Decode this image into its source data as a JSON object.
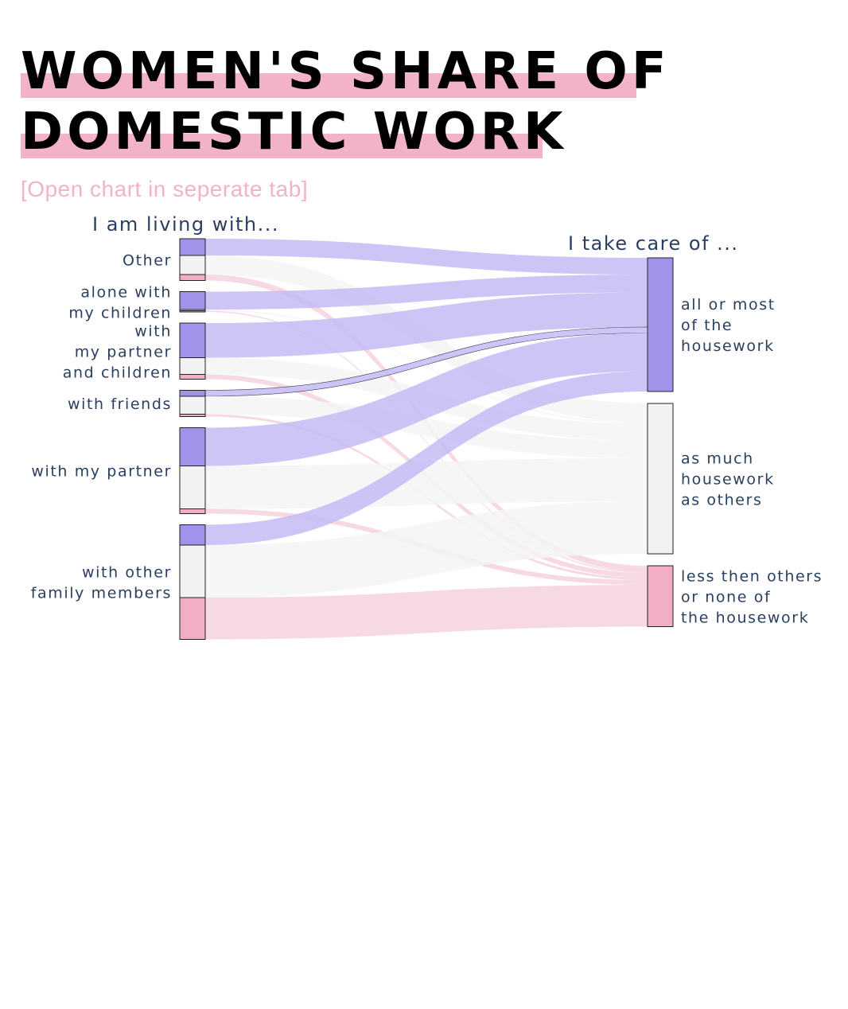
{
  "title": {
    "line1": " WOMEN'S SHARE OF",
    "line2": "DOMESTIC WORK",
    "highlight_color": "#f2b3c9"
  },
  "link": {
    "label": "[Open chart in seperate tab]"
  },
  "chart_data": {
    "type": "sankey",
    "source_heading": "I am living with...",
    "target_heading": "I take care of ...",
    "colors": {
      "all_or_most": "#9f94ea",
      "as_much": "#f2f2f2",
      "less_or_none": "#f2aec4",
      "link_all_or_most": "#c3bbf3",
      "link_as_much": "#f4f4f4",
      "link_less_or_none": "#f5d2de"
    },
    "sources": [
      {
        "id": "other",
        "label": [
          "Other"
        ]
      },
      {
        "id": "alone_children",
        "label": [
          "alone with",
          "my children"
        ]
      },
      {
        "id": "partner_children",
        "label": [
          "with",
          "my partner",
          "and children"
        ]
      },
      {
        "id": "friends",
        "label": [
          "with friends"
        ]
      },
      {
        "id": "partner",
        "label": [
          "with my partner"
        ]
      },
      {
        "id": "family",
        "label": [
          "with other",
          "family members"
        ]
      }
    ],
    "targets": [
      {
        "id": "all_or_most",
        "label": [
          "all or most",
          "of the",
          "housework"
        ]
      },
      {
        "id": "as_much",
        "label": [
          "as much",
          "housework",
          "as others"
        ]
      },
      {
        "id": "less_or_none",
        "label": [
          "less then others",
          "or none of",
          "the housework"
        ]
      }
    ],
    "flows": [
      {
        "source": "other",
        "all_or_most": 14,
        "as_much": 16,
        "less_or_none": 5
      },
      {
        "source": "alone_children",
        "all_or_most": 15,
        "as_much": 1,
        "less_or_none": 1
      },
      {
        "source": "partner_children",
        "all_or_most": 29,
        "as_much": 14,
        "less_or_none": 4
      },
      {
        "source": "friends",
        "all_or_most": 5,
        "as_much": 15,
        "less_or_none": 2
      },
      {
        "source": "partner",
        "all_or_most": 32,
        "as_much": 36,
        "less_or_none": 4
      },
      {
        "source": "family",
        "all_or_most": 17,
        "as_much": 44,
        "less_or_none": 35
      }
    ]
  }
}
